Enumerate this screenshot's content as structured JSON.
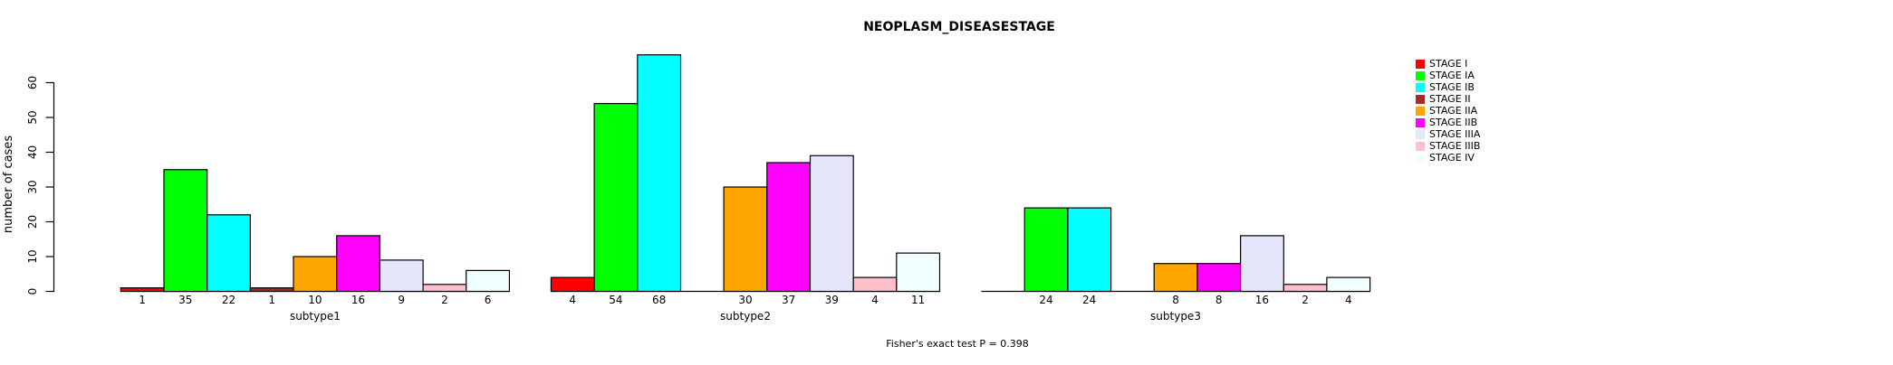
{
  "title": "NEOPLASM_DISEASESTAGE",
  "footer_note": "Fisher's exact test P = 0.398",
  "y_axis": {
    "label": "number of cases",
    "ticks": [
      "0",
      "10",
      "20",
      "30",
      "40",
      "50",
      "60"
    ]
  },
  "chart_data": {
    "type": "bar",
    "title": "NEOPLASM_DISEASESTAGE",
    "ylabel": "number of cases",
    "xlabel": "",
    "ylim": [
      0,
      60
    ],
    "y_ticks": [
      0,
      10,
      20,
      30,
      40,
      50,
      60
    ],
    "grid": false,
    "legend_position": "right",
    "annotation": "Fisher's exact test P = 0.398",
    "categories": [
      "subtype1",
      "subtype2",
      "subtype3"
    ],
    "series": [
      {
        "name": "STAGE I",
        "color": "#FF0000",
        "values": [
          1,
          4,
          0
        ]
      },
      {
        "name": "STAGE IA",
        "color": "#00FF00",
        "values": [
          35,
          54,
          24
        ]
      },
      {
        "name": "STAGE IB",
        "color": "#00FFFF",
        "values": [
          22,
          68,
          24
        ]
      },
      {
        "name": "STAGE II",
        "color": "#A52A2A",
        "values": [
          1,
          0,
          0
        ]
      },
      {
        "name": "STAGE IIA",
        "color": "#FFA500",
        "values": [
          10,
          30,
          8
        ]
      },
      {
        "name": "STAGE IIB",
        "color": "#FF00FF",
        "values": [
          16,
          37,
          8
        ]
      },
      {
        "name": "STAGE IIIA",
        "color": "#E6E6FA",
        "values": [
          9,
          39,
          16
        ]
      },
      {
        "name": "STAGE IIIB",
        "color": "#FFC0CB",
        "values": [
          2,
          4,
          2
        ]
      },
      {
        "name": "STAGE IV",
        "color": "#F0FFFF",
        "values": [
          6,
          11,
          4
        ]
      }
    ]
  }
}
